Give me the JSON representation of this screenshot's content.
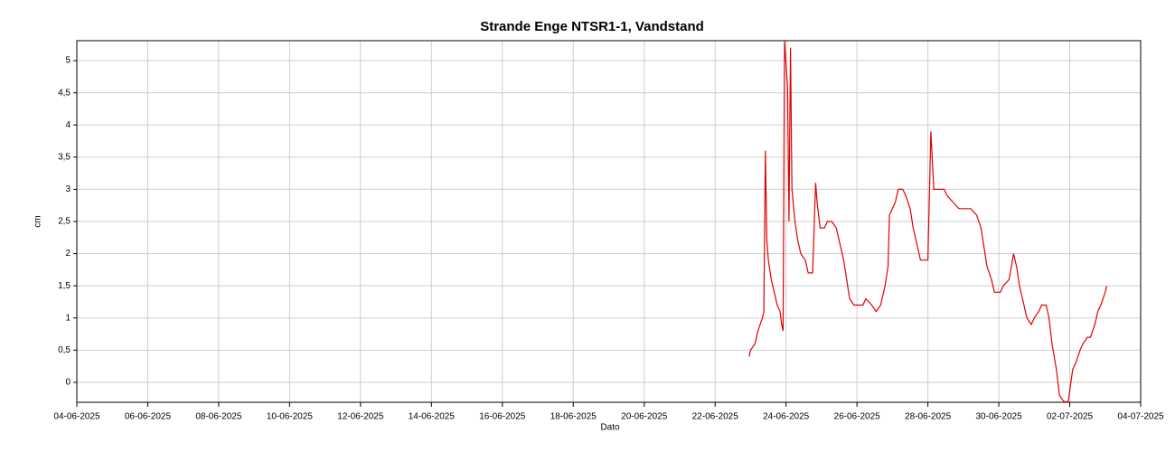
{
  "chart_data": {
    "type": "line",
    "title": "Strande Enge NTSR1-1, Vandstand",
    "x_label": "Dato",
    "y_label": "cm",
    "xlim": [
      "04-06-2025 00:00",
      "04-07-2025 00:00"
    ],
    "xticks": [
      "04-06-2025",
      "06-06-2025",
      "08-06-2025",
      "10-06-2025",
      "12-06-2025",
      "14-06-2025",
      "16-06-2025",
      "18-06-2025",
      "20-06-2025",
      "22-06-2025",
      "24-06-2025",
      "26-06-2025",
      "28-06-2025",
      "30-06-2025",
      "02-07-2025",
      "04-07-2025"
    ],
    "ylim": [
      -0.31,
      5.31
    ],
    "yticks": [
      0,
      {
        "value": 0.5,
        "label": "0,5"
      },
      1,
      {
        "value": 1.5,
        "label": "1,5"
      },
      2,
      {
        "value": 2.5,
        "label": "2,5"
      },
      3,
      {
        "value": 3.5,
        "label": "3,5"
      },
      4,
      {
        "value": 4.5,
        "label": "4,5"
      },
      5
    ],
    "grid": true,
    "x": [
      "22-06-2025 23:00",
      "23-06-2025 00:00",
      "23-06-2025 03:00",
      "23-06-2025 05:00",
      "23-06-2025 08:00",
      "23-06-2025 09:00",
      "23-06-2025 10:00",
      "23-06-2025 11:00",
      "23-06-2025 12:00",
      "23-06-2025 14:00",
      "23-06-2025 16:00",
      "23-06-2025 18:00",
      "23-06-2025 20:00",
      "23-06-2025 21:00",
      "23-06-2025 22:00",
      "23-06-2025 23:00",
      "24-06-2025 01:00",
      "24-06-2025 02:00",
      "24-06-2025 03:00",
      "24-06-2025 04:00",
      "24-06-2025 06:00",
      "24-06-2025 08:00",
      "24-06-2025 10:00",
      "24-06-2025 13:00",
      "24-06-2025 15:00",
      "24-06-2025 18:00",
      "24-06-2025 20:00",
      "24-06-2025 21:00",
      "24-06-2025 23:00",
      "25-06-2025 02:00",
      "25-06-2025 04:00",
      "25-06-2025 07:00",
      "25-06-2025 10:00",
      "25-06-2025 12:00",
      "25-06-2025 15:00",
      "25-06-2025 17:00",
      "25-06-2025 19:00",
      "25-06-2025 22:00",
      "26-06-2025 00:00",
      "26-06-2025 04:00",
      "26-06-2025 06:00",
      "26-06-2025 10:00",
      "26-06-2025 13:00",
      "26-06-2025 16:00",
      "26-06-2025 19:00",
      "26-06-2025 21:00",
      "26-06-2025 22:00",
      "27-06-2025 00:00",
      "27-06-2025 02:00",
      "27-06-2025 04:00",
      "27-06-2025 07:00",
      "27-06-2025 09:00",
      "27-06-2025 12:00",
      "27-06-2025 14:00",
      "27-06-2025 17:00",
      "27-06-2025 19:00",
      "28-06-2025 00:00",
      "28-06-2025 02:00",
      "28-06-2025 04:00",
      "28-06-2025 07:00",
      "28-06-2025 11:00",
      "28-06-2025 13:00",
      "28-06-2025 17:00",
      "28-06-2025 21:00",
      "29-06-2025 02:00",
      "29-06-2025 05:00",
      "29-06-2025 09:00",
      "29-06-2025 12:00",
      "29-06-2025 14:00",
      "29-06-2025 16:00",
      "29-06-2025 19:00",
      "29-06-2025 21:00",
      "30-06-2025 01:00",
      "30-06-2025 03:00",
      "30-06-2025 07:00",
      "30-06-2025 10:00",
      "30-06-2025 12:00",
      "30-06-2025 14:00",
      "30-06-2025 17:00",
      "30-06-2025 19:00",
      "30-06-2025 22:00",
      "01-07-2025 00:00",
      "01-07-2025 03:00",
      "01-07-2025 05:00",
      "01-07-2025 08:00",
      "01-07-2025 10:00",
      "01-07-2025 12:00",
      "01-07-2025 15:00",
      "01-07-2025 17:00",
      "01-07-2025 20:00",
      "01-07-2025 23:00",
      "02-07-2025 02:00",
      "02-07-2025 04:00",
      "02-07-2025 07:00",
      "02-07-2025 09:00",
      "02-07-2025 12:00",
      "02-07-2025 14:00",
      "02-07-2025 17:00",
      "02-07-2025 19:00",
      "02-07-2025 21:00",
      "03-07-2025 00:00",
      "03-07-2025 01:00"
    ],
    "series": [
      {
        "name": "Vandstand",
        "color": "#e00000",
        "values": [
          0.4,
          0.5,
          0.6,
          0.8,
          1.0,
          1.1,
          3.6,
          2.2,
          1.9,
          1.6,
          1.4,
          1.2,
          1.1,
          0.9,
          0.8,
          5.3,
          4.6,
          2.5,
          5.2,
          3.0,
          2.5,
          2.2,
          2.0,
          1.9,
          1.7,
          1.7,
          3.1,
          2.8,
          2.4,
          2.4,
          2.5,
          2.5,
          2.4,
          2.2,
          1.9,
          1.6,
          1.3,
          1.2,
          1.2,
          1.2,
          1.3,
          1.2,
          1.1,
          1.2,
          1.5,
          1.8,
          2.6,
          2.7,
          2.8,
          3.0,
          3.0,
          2.9,
          2.7,
          2.4,
          2.1,
          1.9,
          1.9,
          3.9,
          3.0,
          3.0,
          3.0,
          2.9,
          2.8,
          2.7,
          2.7,
          2.7,
          2.6,
          2.4,
          2.1,
          1.8,
          1.6,
          1.4,
          1.4,
          1.5,
          1.6,
          2.0,
          1.8,
          1.5,
          1.2,
          1.0,
          0.9,
          1.0,
          1.1,
          1.2,
          1.2,
          1.0,
          0.6,
          0.2,
          -0.2,
          -0.3,
          -0.3,
          0.2,
          0.3,
          0.5,
          0.6,
          0.7,
          0.7,
          0.9,
          1.1,
          1.2,
          1.4,
          1.5
        ]
      }
    ]
  }
}
